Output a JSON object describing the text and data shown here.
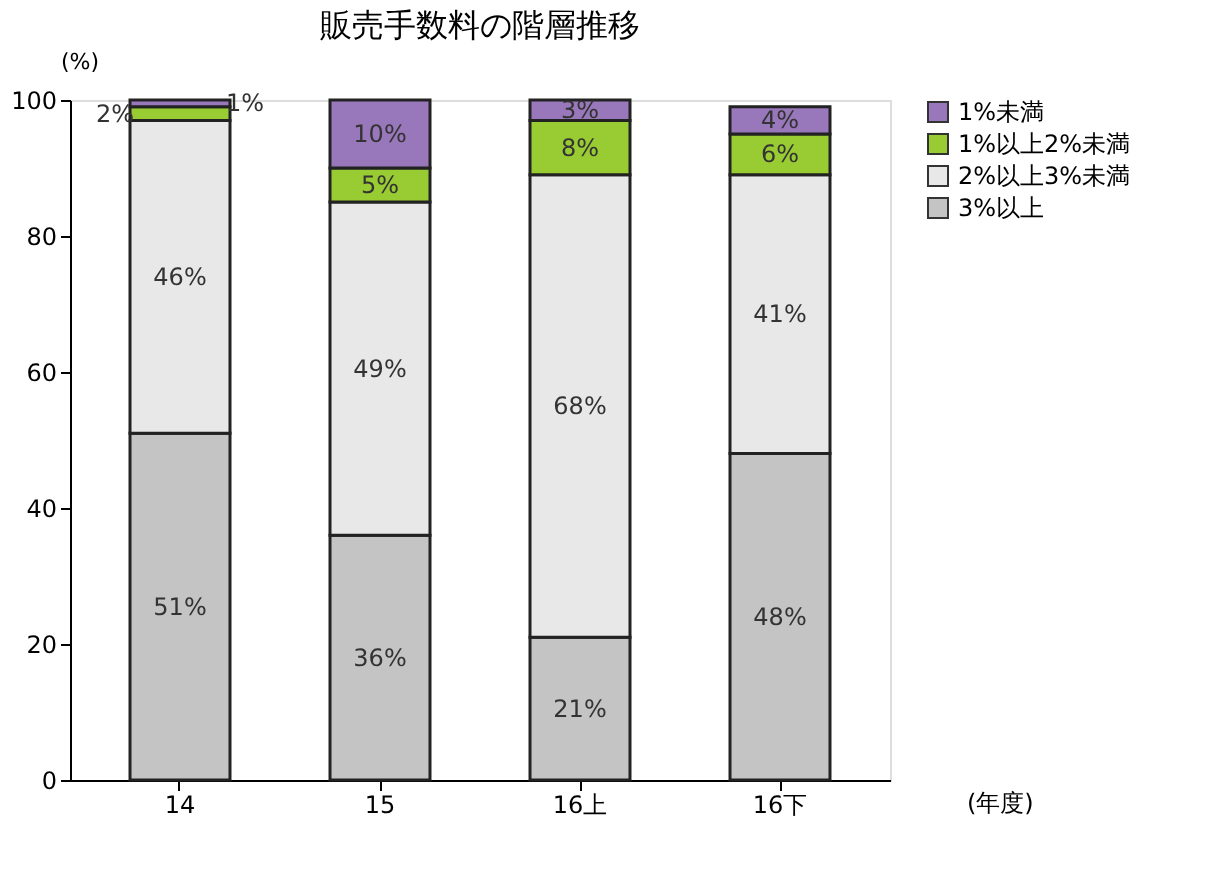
{
  "chart_data": {
    "type": "bar",
    "stacked": true,
    "title": "販売手数料の階層推移",
    "ylabel": "(%)",
    "xlabel": "(年度)",
    "categories": [
      "14",
      "15",
      "16上",
      "16下"
    ],
    "series": [
      {
        "name": "3%以上",
        "color": "#c4c4c4",
        "values": [
          51,
          36,
          21,
          48
        ],
        "value_labels": [
          "51%",
          "36%",
          "21%",
          "48%"
        ]
      },
      {
        "name": "2%以上3%未満",
        "color": "#e8e8e8",
        "values": [
          46,
          49,
          68,
          41
        ],
        "value_labels": [
          "46%",
          "49%",
          "68%",
          "41%"
        ]
      },
      {
        "name": "1%以上2%未満",
        "color": "#99cc33",
        "values": [
          2,
          5,
          8,
          6
        ],
        "value_labels": [
          "2%",
          "5%",
          "8%",
          "6%"
        ]
      },
      {
        "name": "1%未満",
        "color": "#9977bb",
        "values": [
          1,
          10,
          3,
          4
        ],
        "value_labels": [
          "1%",
          "10%",
          "3%",
          "4%"
        ]
      }
    ],
    "ylim": [
      0,
      100
    ],
    "yticks": [
      0,
      20,
      40,
      60,
      80,
      100
    ],
    "grid": false,
    "legend": "right"
  }
}
